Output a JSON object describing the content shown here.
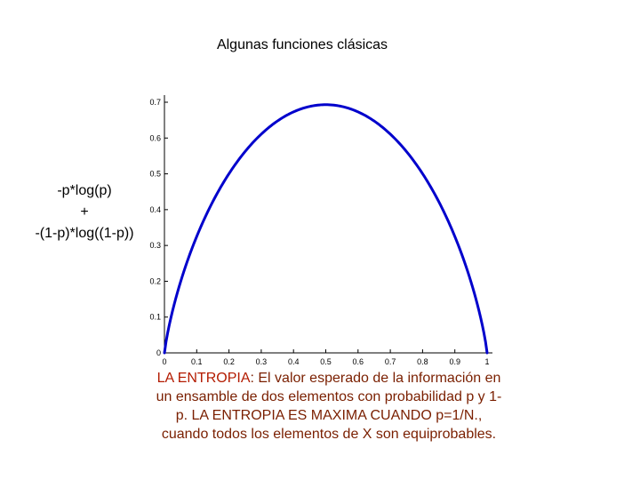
{
  "chart_data": {
    "type": "line",
    "title": "Algunas funciones clásicas",
    "ylabel_lines": [
      "-p*log(p)",
      "+",
      "-(1-p)*log((1-p))"
    ],
    "xlabel": "",
    "xlim": [
      0,
      1
    ],
    "ylim": [
      0,
      0.7
    ],
    "xticks": [
      "0",
      "0.1",
      "0.2",
      "0.3",
      "0.4",
      "0.5",
      "0.6",
      "0.7",
      "0.8",
      "0.9",
      "1"
    ],
    "yticks": [
      "0",
      "0.1",
      "0.2",
      "0.3",
      "0.4",
      "0.5",
      "0.6",
      "0.7"
    ],
    "grid": false,
    "series": [
      {
        "color": "#0000cc",
        "x": [
          0,
          0.01,
          0.02,
          0.03,
          0.05,
          0.07,
          0.1,
          0.13,
          0.16,
          0.2,
          0.25,
          0.3,
          0.35,
          0.4,
          0.45,
          0.5,
          0.55,
          0.6,
          0.65,
          0.7,
          0.75,
          0.8,
          0.84,
          0.87,
          0.9,
          0.93,
          0.95,
          0.97,
          0.98,
          0.99,
          1
        ],
        "y": [
          0,
          0.056,
          0.098,
          0.135,
          0.199,
          0.253,
          0.325,
          0.386,
          0.44,
          0.5,
          0.562,
          0.611,
          0.647,
          0.673,
          0.688,
          0.693,
          0.688,
          0.673,
          0.647,
          0.611,
          0.562,
          0.5,
          0.44,
          0.386,
          0.325,
          0.253,
          0.199,
          0.135,
          0.098,
          0.056,
          0
        ]
      }
    ]
  },
  "caption": {
    "highlight": "LA ENTROPIA",
    "rest": ": El valor esperado de la información en un ensamble de dos elementos con probabilidad p y 1-p.  LA ENTROPIA ES MAXIMA CUANDO p=1/N., cuando todos los elementos de X son equiprobables."
  }
}
